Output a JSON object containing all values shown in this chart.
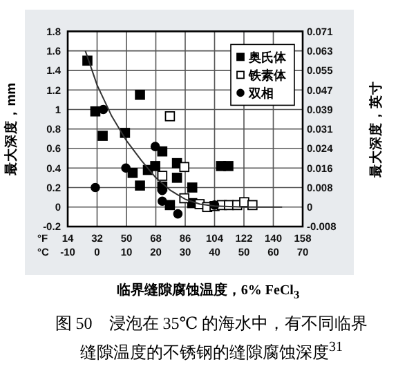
{
  "chart_data": {
    "type": "scatter",
    "xlabel": "临界缝隙腐蚀温度，6% FeCl$_{3}$",
    "ylabel": "最大深度，mm",
    "y2label": "最大深度，英寸",
    "xlim": [
      -10,
      70
    ],
    "xticks": [
      -10,
      0,
      10,
      20,
      30,
      40,
      50,
      60,
      70
    ],
    "x2lim": [
      14,
      158
    ],
    "x2ticks": [
      14,
      32,
      50,
      68,
      86,
      104,
      122,
      140,
      158
    ],
    "ylim": [
      -0.2,
      1.8
    ],
    "yticks": [
      -0.2,
      0,
      0.2,
      0.4,
      0.6,
      0.8,
      1.0,
      1.2,
      1.4,
      1.6,
      1.8
    ],
    "y2lim": [
      -0.00787,
      0.07087
    ],
    "y2ticks": [
      {
        "value": -0.00787,
        "label": "-0.008"
      },
      {
        "value": 0,
        "label": "0"
      },
      {
        "value": 0.00787,
        "label": "0.008"
      },
      {
        "value": 0.01575,
        "label": "0.016"
      },
      {
        "value": 0.02362,
        "label": "0.024"
      },
      {
        "value": 0.0315,
        "label": "0.031"
      },
      {
        "value": 0.03937,
        "label": "0.039"
      },
      {
        "value": 0.04724,
        "label": "0.047"
      },
      {
        "value": 0.05512,
        "label": "0.055"
      },
      {
        "value": 0.06299,
        "label": "0.063"
      },
      {
        "value": 0.07087,
        "label": "0.071"
      }
    ],
    "grid": true,
    "legend": "top right",
    "tick_labels": "xy",
    "series": [
      {
        "name": "奥氏体",
        "marker": "square",
        "color": "#000000",
        "x": [
          -3.3,
          -0.6,
          1.9,
          14.6,
          9.5,
          22.2,
          12.1,
          17.3,
          19.8,
          27.2,
          42.2,
          44.7,
          14.6,
          27.2,
          22.2,
          32.4,
          32.4,
          24.8
        ],
        "values": [
          1.5,
          0.98,
          0.73,
          1.15,
          0.76,
          0.57,
          0.35,
          0.38,
          0.42,
          0.45,
          0.42,
          0.42,
          0.22,
          0.3,
          0.21,
          0.2,
          0.04,
          0.02
        ]
      },
      {
        "name": "铁素体",
        "marker": "square",
        "color": "#ffffff",
        "x": [
          24.8,
          29.7,
          22.2,
          29.7,
          34.9,
          37.5,
          40,
          42.5,
          44.9,
          47.7,
          50.1,
          52.9
        ],
        "values": [
          0.93,
          0.41,
          0.32,
          0.09,
          0.03,
          0.0,
          0.01,
          0.02,
          0.02,
          0.02,
          0.05,
          0.02
        ]
      },
      {
        "name": "双相",
        "marker": "circle",
        "color": "#000000",
        "x": [
          2.1,
          -0.6,
          9.8,
          19.8,
          22.2,
          22.2,
          27.5,
          40
        ],
        "values": [
          1.0,
          0.2,
          0.4,
          0.62,
          0.17,
          0.06,
          -0.07,
          0.02
        ]
      },
      {
        "type": "line",
        "marker": "none",
        "color": "#333333",
        "x": [
          -4,
          0,
          5,
          10,
          15,
          20,
          25,
          30,
          35,
          40,
          50,
          63
        ],
        "values": [
          1.6,
          1.25,
          0.93,
          0.68,
          0.48,
          0.3,
          0.17,
          0.08,
          0.03,
          0.01,
          0.0,
          0.0
        ]
      }
    ],
    "annotations": [
      "°F",
      "°C",
      "图 50　浸泡在 35℃ 的海水中，有不同临界缝隙温度的不锈钢的缝隙腐蚀深度$^{31}$"
    ]
  }
}
